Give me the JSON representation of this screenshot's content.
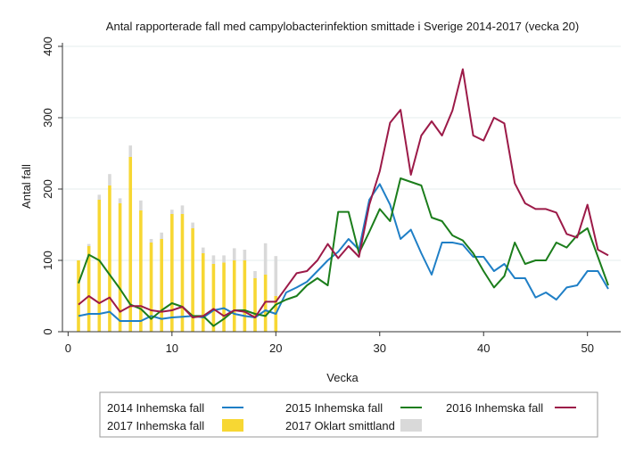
{
  "chart_data": {
    "type": "line",
    "title": "Antal rapporterade fall med campylobacterinfektion smittade i Sverige 2014-2017 (vecka 20)",
    "xlabel": "Vecka",
    "ylabel": "Antal fall",
    "xlim": [
      0,
      53
    ],
    "ylim": [
      0,
      400
    ],
    "xticks": [
      0,
      10,
      20,
      30,
      40,
      50
    ],
    "yticks": [
      0,
      100,
      200,
      300,
      400
    ],
    "grid": "horizontal",
    "legend_position": "bottom",
    "bars": {
      "x": [
        1,
        2,
        3,
        4,
        5,
        6,
        7,
        8,
        9,
        10,
        11,
        12,
        13,
        14,
        15,
        16,
        17,
        18,
        19,
        20
      ],
      "inhemska": [
        100,
        120,
        185,
        205,
        180,
        245,
        170,
        125,
        130,
        165,
        165,
        145,
        110,
        95,
        97,
        100,
        100,
        75,
        80,
        50
      ],
      "oklart": [
        0,
        3,
        7,
        16,
        7,
        16,
        14,
        5,
        9,
        6,
        12,
        8,
        8,
        12,
        10,
        17,
        15,
        10,
        44,
        56
      ]
    },
    "series": [
      {
        "name": "2014 Inhemska fall",
        "color": "#1f7fc6",
        "x": [
          1,
          2,
          3,
          4,
          5,
          6,
          7,
          8,
          9,
          10,
          11,
          12,
          13,
          14,
          15,
          16,
          17,
          18,
          19,
          20,
          21,
          22,
          23,
          24,
          25,
          26,
          27,
          28,
          29,
          30,
          31,
          32,
          33,
          34,
          35,
          36,
          37,
          38,
          39,
          40,
          41,
          42,
          43,
          44,
          45,
          46,
          47,
          48,
          49,
          50,
          51,
          52
        ],
        "values": [
          22,
          25,
          25,
          28,
          15,
          15,
          15,
          22,
          18,
          20,
          21,
          22,
          20,
          30,
          33,
          25,
          22,
          20,
          30,
          25,
          55,
          62,
          70,
          85,
          100,
          112,
          130,
          115,
          185,
          207,
          178,
          130,
          143,
          110,
          80,
          125,
          125,
          122,
          105,
          105,
          85,
          95,
          75,
          75,
          48,
          55,
          45,
          62,
          65,
          85,
          85,
          60
        ]
      },
      {
        "name": "2015 Inhemska fall",
        "color": "#1b7d1b",
        "x": [
          1,
          2,
          3,
          4,
          5,
          6,
          7,
          8,
          9,
          10,
          11,
          12,
          13,
          14,
          15,
          16,
          17,
          18,
          19,
          20,
          21,
          22,
          23,
          24,
          25,
          26,
          27,
          28,
          29,
          30,
          31,
          32,
          33,
          34,
          35,
          36,
          37,
          38,
          39,
          40,
          41,
          42,
          43,
          44,
          45,
          46,
          47,
          48,
          49,
          50,
          51,
          52
        ],
        "values": [
          68,
          108,
          100,
          80,
          60,
          38,
          32,
          18,
          30,
          40,
          35,
          22,
          22,
          8,
          18,
          30,
          30,
          25,
          22,
          38,
          45,
          50,
          65,
          75,
          65,
          168,
          168,
          110,
          140,
          172,
          155,
          215,
          210,
          205,
          160,
          155,
          135,
          128,
          110,
          85,
          62,
          78,
          125,
          95,
          100,
          100,
          125,
          118,
          135,
          145,
          105,
          65
        ]
      },
      {
        "name": "2016 Inhemska fall",
        "color": "#9c1a48",
        "x": [
          1,
          2,
          3,
          4,
          5,
          6,
          7,
          8,
          9,
          10,
          11,
          12,
          13,
          14,
          15,
          16,
          17,
          18,
          19,
          20,
          21,
          22,
          23,
          24,
          25,
          26,
          27,
          28,
          29,
          30,
          31,
          32,
          33,
          34,
          35,
          36,
          37,
          38,
          39,
          40,
          41,
          42,
          43,
          44,
          45,
          46,
          47,
          48,
          49,
          50,
          51,
          52
        ],
        "values": [
          38,
          50,
          40,
          48,
          28,
          36,
          36,
          30,
          28,
          30,
          35,
          20,
          22,
          32,
          22,
          30,
          28,
          20,
          42,
          42,
          62,
          82,
          85,
          100,
          123,
          103,
          120,
          105,
          178,
          225,
          293,
          311,
          220,
          275,
          295,
          275,
          310,
          368,
          275,
          268,
          300,
          292,
          208,
          180,
          172,
          172,
          167,
          137,
          132,
          178,
          115,
          107
        ]
      }
    ],
    "legend": [
      {
        "label": "2014 Inhemska fall",
        "symbol": "line",
        "color": "#1f7fc6"
      },
      {
        "label": "2015 Inhemska fall",
        "symbol": "line",
        "color": "#1b7d1b"
      },
      {
        "label": "2016 Inhemska fall",
        "symbol": "line",
        "color": "#9c1a48"
      },
      {
        "label": "2017 Inhemska fall",
        "symbol": "bar",
        "color": "#f7d733"
      },
      {
        "label": "2017 Oklart smittland",
        "symbol": "bar",
        "color": "#d9d9d9"
      }
    ]
  }
}
